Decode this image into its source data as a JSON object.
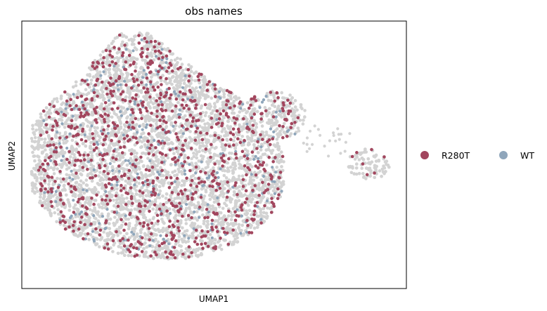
{
  "chart_data": {
    "type": "scatter",
    "title": "obs names",
    "xlabel": "UMAP1",
    "ylabel": "UMAP2",
    "xticks": "none",
    "yticks": "none",
    "grid": false,
    "legend_position": "right",
    "background_color": "#d3d3d3",
    "series": [
      {
        "name": "R280T",
        "color": "#a2465e"
      },
      {
        "name": "WT",
        "color": "#8fa6bb"
      }
    ]
  }
}
